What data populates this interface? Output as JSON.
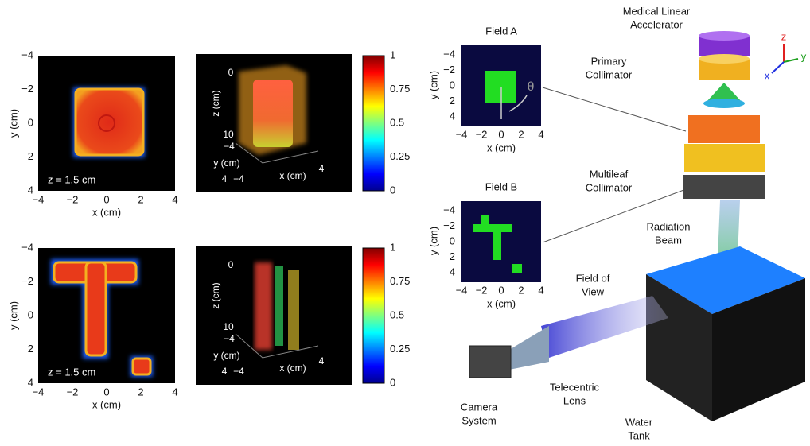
{
  "heatmap_top": {
    "xticks": [
      "−4",
      "−2",
      "0",
      "2",
      "4"
    ],
    "yticks": [
      "−4",
      "−2",
      "0",
      "2",
      "4"
    ],
    "xlabel": "x (cm)",
    "ylabel": "y (cm)",
    "annotation": "z = 1.5 cm"
  },
  "render_top": {
    "zticks": [
      "0",
      "10"
    ],
    "zlabel": "z (cm)",
    "yticks": [
      "−4",
      "4"
    ],
    "ylabel": "y (cm)",
    "xticks": [
      "−4",
      "4"
    ],
    "xlabel": "x (cm)"
  },
  "colorbar_top": {
    "ticks": [
      "1",
      "0.75",
      "0.5",
      "0.25",
      "0"
    ]
  },
  "heatmap_bottom": {
    "xticks": [
      "−4",
      "−2",
      "0",
      "2",
      "4"
    ],
    "yticks": [
      "−4",
      "−2",
      "0",
      "2",
      "4"
    ],
    "xlabel": "x (cm)",
    "ylabel": "y (cm)",
    "annotation": "z = 1.5 cm"
  },
  "render_bottom": {
    "zticks": [
      "0",
      "10"
    ],
    "zlabel": "z (cm)",
    "yticks": [
      "−4",
      "4"
    ],
    "ylabel": "y (cm)",
    "xticks": [
      "−4",
      "4"
    ],
    "xlabel": "x (cm)"
  },
  "colorbar_bottom": {
    "ticks": [
      "1",
      "0.75",
      "0.5",
      "0.25",
      "0"
    ]
  },
  "field_a": {
    "title": "Field A",
    "xticks": [
      "−4",
      "−2",
      "0",
      "2",
      "4"
    ],
    "yticks": [
      "−4",
      "−2",
      "0",
      "2",
      "4"
    ],
    "xlabel": "x (cm)",
    "ylabel": "y (cm)",
    "angle": "θ"
  },
  "field_b": {
    "title": "Field B",
    "xticks": [
      "−4",
      "−2",
      "0",
      "2",
      "4"
    ],
    "yticks": [
      "−4",
      "−2",
      "0",
      "2",
      "4"
    ],
    "xlabel": "x (cm)",
    "ylabel": "y (cm)"
  },
  "labels": {
    "linac": [
      "Medical Linear",
      "Accelerator"
    ],
    "primary": [
      "Primary",
      "Collimator"
    ],
    "mlc": [
      "Multileaf",
      "Collimator"
    ],
    "beam": [
      "Radiation",
      "Beam"
    ],
    "fov": [
      "Field of",
      "View"
    ],
    "lens": [
      "Telecentric",
      "Lens"
    ],
    "camera": [
      "Camera",
      "System"
    ],
    "tank": [
      "Water",
      "Tank"
    ]
  },
  "axes": {
    "z": "z",
    "y": "y",
    "x": "x"
  }
}
